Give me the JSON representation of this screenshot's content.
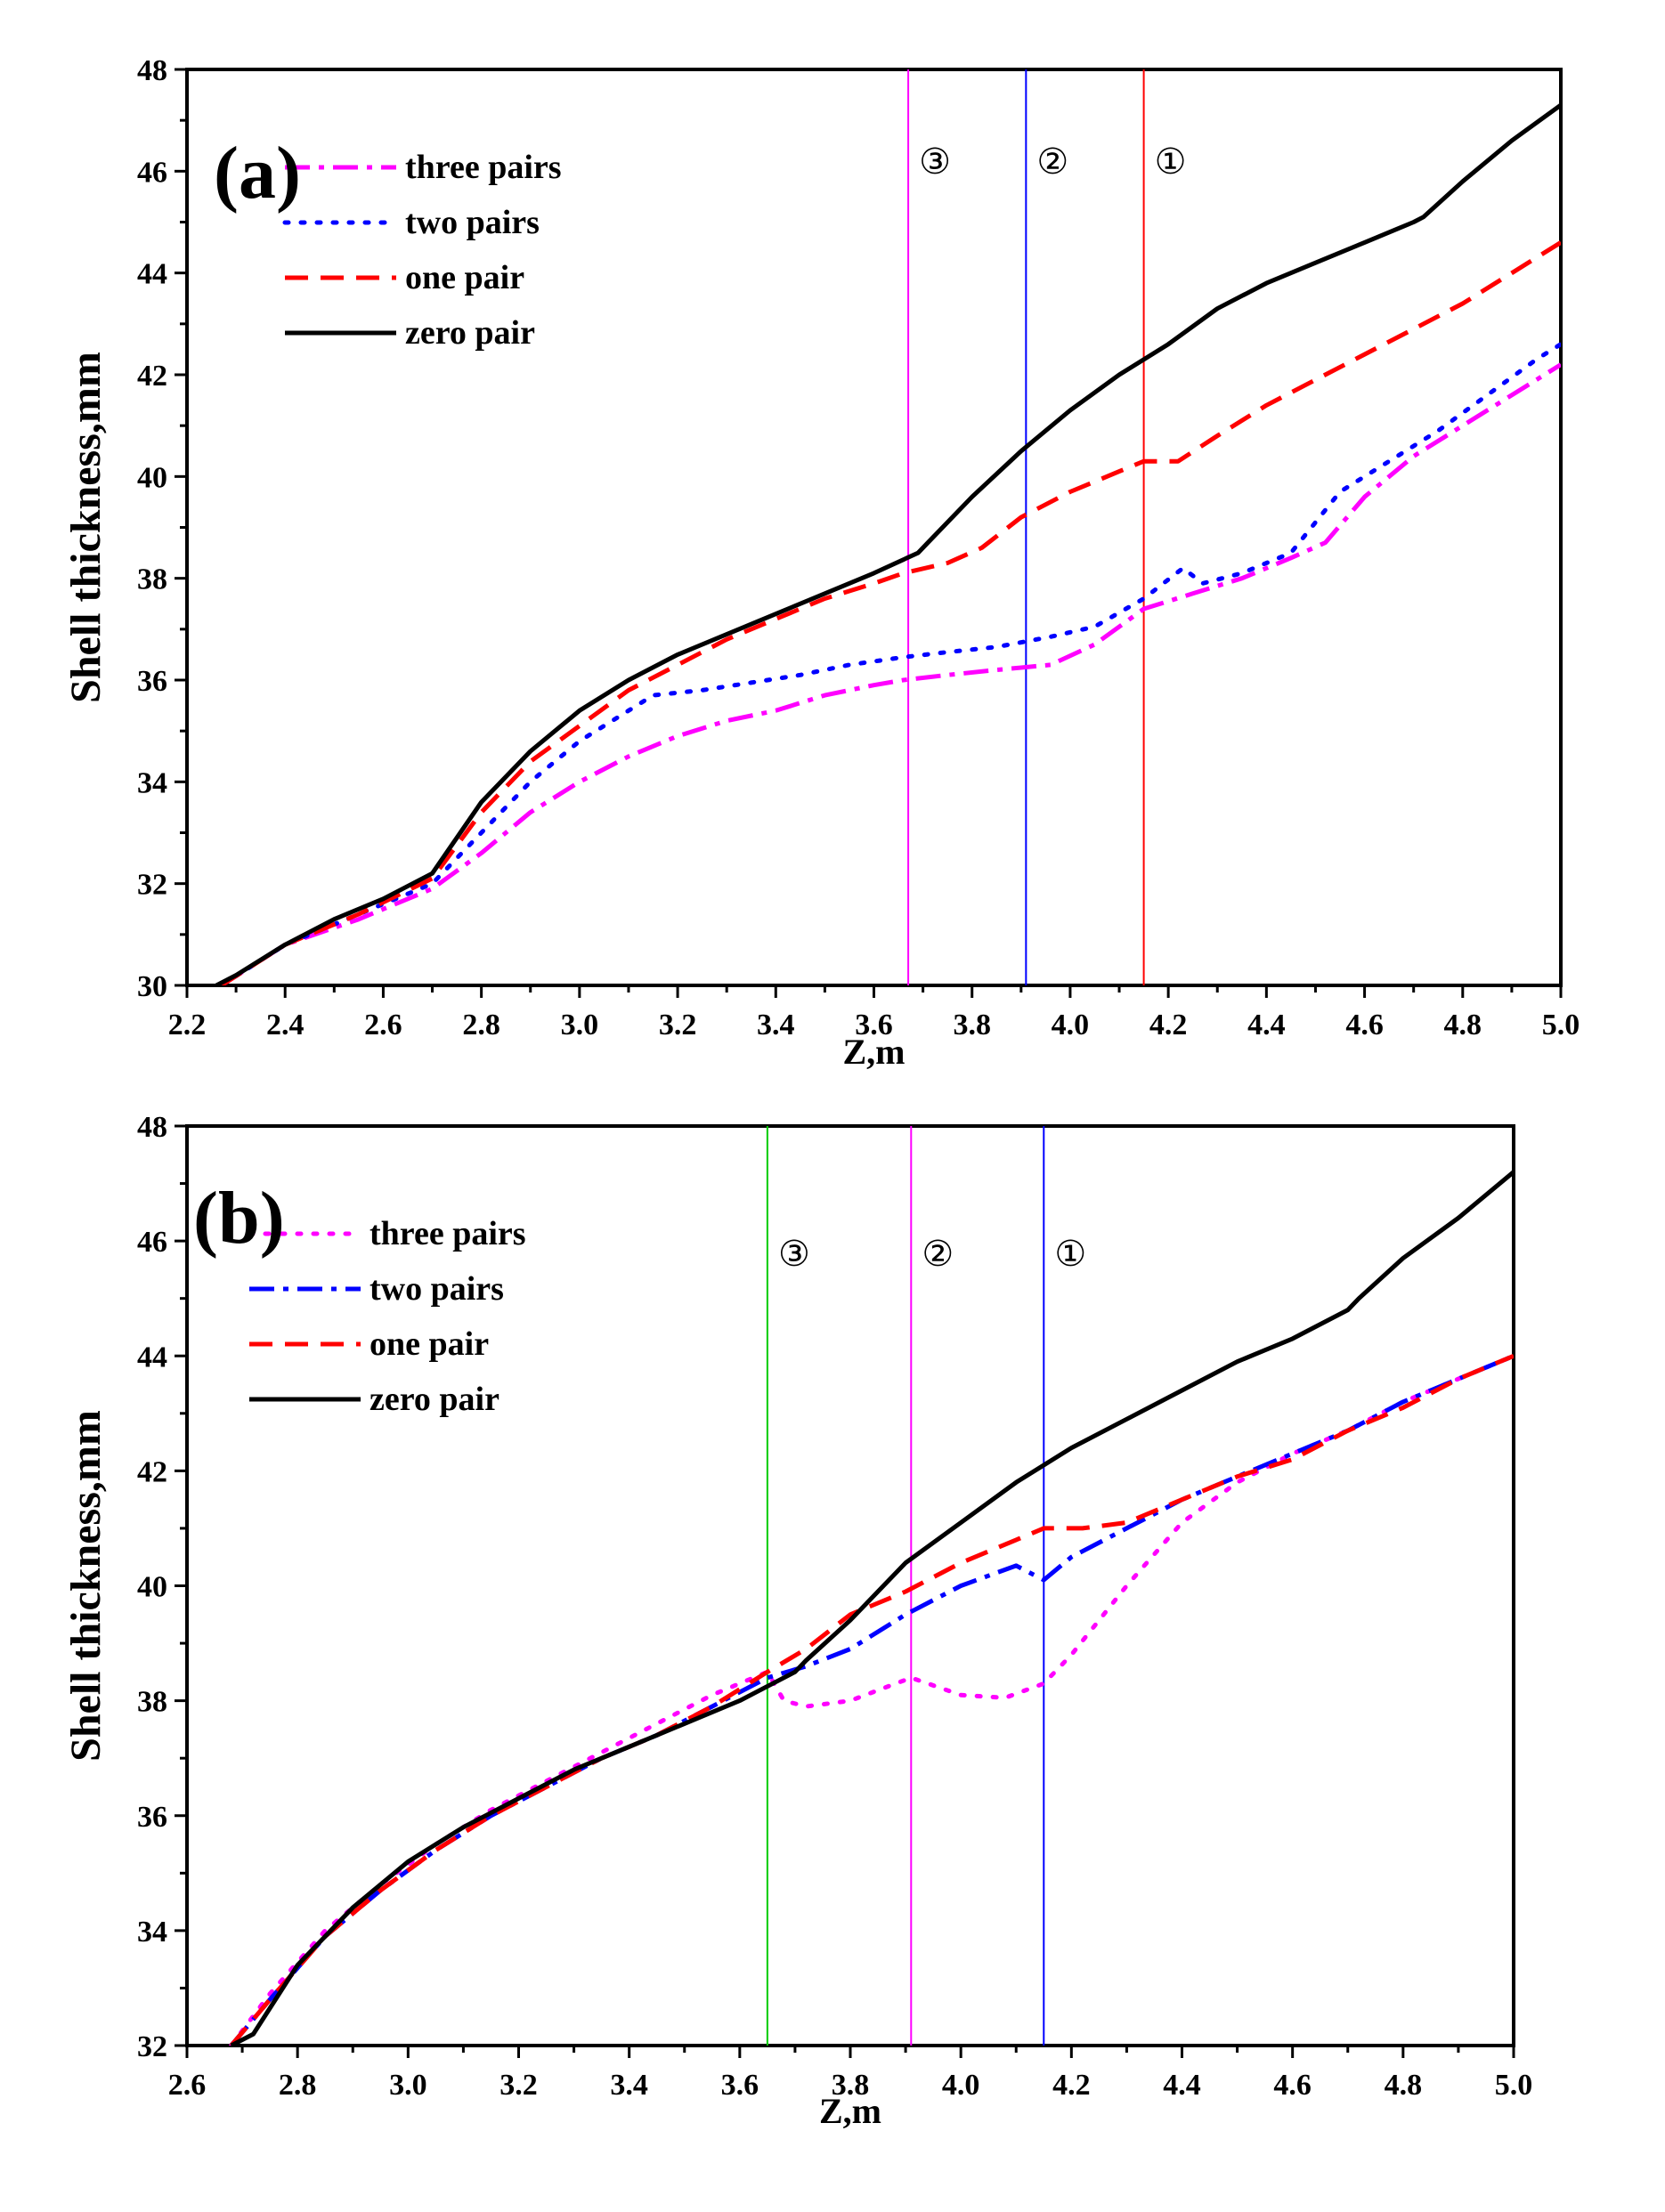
{
  "chart_data": [
    {
      "id": "a",
      "type": "line",
      "panel_label": "(a)",
      "xlabel": "Z,m",
      "ylabel": "Shell thickness,mm",
      "xlim": [
        2.2,
        5.0
      ],
      "ylim": [
        30,
        48
      ],
      "xticks": [
        "2.2",
        "2.4",
        "2.6",
        "2.8",
        "3.0",
        "3.2",
        "3.4",
        "3.6",
        "3.8",
        "4.0",
        "4.2",
        "4.4",
        "4.6",
        "4.8",
        "5.0"
      ],
      "yticks": [
        "30",
        "32",
        "34",
        "36",
        "38",
        "40",
        "42",
        "44",
        "46",
        "48"
      ],
      "legend_position": "top-left",
      "series": [
        {
          "name": "three pairs",
          "color": "#ff00ff",
          "dash": "dashdot",
          "x": [
            2.27,
            2.4,
            2.55,
            2.7,
            2.8,
            2.9,
            3.0,
            3.1,
            3.2,
            3.3,
            3.4,
            3.5,
            3.6,
            3.66,
            3.75,
            3.85,
            3.96,
            4.05,
            4.15,
            4.25,
            4.35,
            4.45,
            4.52,
            4.6,
            4.7,
            4.8,
            4.9,
            5.0
          ],
          "y": [
            30.0,
            30.8,
            31.3,
            31.9,
            32.6,
            33.4,
            34.0,
            34.5,
            34.9,
            35.2,
            35.4,
            35.7,
            35.9,
            36.0,
            36.1,
            36.2,
            36.3,
            36.7,
            37.4,
            37.7,
            38.0,
            38.4,
            38.7,
            39.6,
            40.4,
            41.0,
            41.6,
            42.2
          ]
        },
        {
          "name": "two pairs",
          "color": "#0000ff",
          "dash": "dot",
          "x": [
            2.27,
            2.4,
            2.55,
            2.7,
            2.8,
            2.9,
            3.0,
            3.1,
            3.15,
            3.25,
            3.35,
            3.45,
            3.55,
            3.66,
            3.75,
            3.85,
            3.96,
            4.05,
            4.15,
            4.23,
            4.27,
            4.35,
            4.45,
            4.55,
            4.65,
            4.75,
            4.85,
            4.95,
            5.0
          ],
          "y": [
            30.0,
            30.8,
            31.4,
            32.0,
            33.0,
            34.0,
            34.8,
            35.4,
            35.7,
            35.8,
            35.95,
            36.1,
            36.3,
            36.45,
            36.55,
            36.65,
            36.85,
            37.05,
            37.6,
            38.2,
            37.9,
            38.1,
            38.5,
            39.7,
            40.3,
            40.9,
            41.6,
            42.3,
            42.6
          ]
        },
        {
          "name": "one pair",
          "color": "#ff0000",
          "dash": "dash",
          "x": [
            2.27,
            2.4,
            2.55,
            2.7,
            2.8,
            2.9,
            3.0,
            3.1,
            3.2,
            3.3,
            3.4,
            3.5,
            3.6,
            3.66,
            3.75,
            3.82,
            3.9,
            4.0,
            4.1,
            4.15,
            4.22,
            4.3,
            4.4,
            4.5,
            4.6,
            4.7,
            4.8,
            4.9,
            5.0
          ],
          "y": [
            30.0,
            30.8,
            31.4,
            32.1,
            33.4,
            34.4,
            35.1,
            35.8,
            36.3,
            36.8,
            37.2,
            37.6,
            37.9,
            38.1,
            38.3,
            38.6,
            39.2,
            39.7,
            40.1,
            40.3,
            40.3,
            40.8,
            41.4,
            41.9,
            42.4,
            42.9,
            43.4,
            44.0,
            44.6
          ]
        },
        {
          "name": "zero pair",
          "color": "#000000",
          "dash": "solid",
          "x": [
            2.26,
            2.3,
            2.4,
            2.5,
            2.6,
            2.7,
            2.8,
            2.9,
            3.0,
            3.1,
            3.2,
            3.3,
            3.4,
            3.5,
            3.6,
            3.69,
            3.71,
            3.8,
            3.9,
            4.0,
            4.1,
            4.2,
            4.3,
            4.4,
            4.5,
            4.6,
            4.7,
            4.72,
            4.8,
            4.9,
            5.0
          ],
          "y": [
            30.0,
            30.2,
            30.8,
            31.3,
            31.7,
            32.2,
            33.6,
            34.6,
            35.4,
            36.0,
            36.5,
            36.9,
            37.3,
            37.7,
            38.1,
            38.5,
            38.7,
            39.6,
            40.5,
            41.3,
            42.0,
            42.6,
            43.3,
            43.8,
            44.2,
            44.6,
            45.0,
            45.1,
            45.8,
            46.6,
            47.3
          ]
        }
      ],
      "vlines": [
        {
          "x": 3.67,
          "color": "#ff00ff",
          "label": "③"
        },
        {
          "x": 3.91,
          "color": "#0000ff",
          "label": "②"
        },
        {
          "x": 4.15,
          "color": "#ff0000",
          "label": "①"
        }
      ]
    },
    {
      "id": "b",
      "type": "line",
      "panel_label": "(b)",
      "xlabel": "Z,m",
      "ylabel": "Shell thickness,mm",
      "xlim": [
        2.6,
        5.0
      ],
      "ylim": [
        32,
        48
      ],
      "xticks": [
        "2.6",
        "2.8",
        "3.0",
        "3.2",
        "3.4",
        "3.6",
        "3.8",
        "4.0",
        "4.2",
        "4.4",
        "4.6",
        "4.8",
        "5.0"
      ],
      "yticks": [
        "32",
        "34",
        "36",
        "38",
        "40",
        "42",
        "44",
        "46",
        "48"
      ],
      "legend_position": "top-left",
      "series": [
        {
          "name": "three pairs",
          "color": "#ff00ff",
          "dash": "dot",
          "x": [
            2.68,
            2.75,
            2.85,
            2.95,
            3.05,
            3.15,
            3.25,
            3.35,
            3.45,
            3.55,
            3.65,
            3.68,
            3.72,
            3.8,
            3.91,
            4.0,
            4.08,
            4.15,
            4.2,
            4.3,
            4.4,
            4.5,
            4.6,
            4.7,
            4.8,
            4.9,
            5.0
          ],
          "y": [
            32.0,
            32.9,
            34.0,
            34.8,
            35.5,
            36.1,
            36.6,
            37.1,
            37.6,
            38.1,
            38.5,
            38.0,
            37.9,
            38.0,
            38.4,
            38.1,
            38.05,
            38.3,
            38.8,
            40.0,
            41.1,
            41.8,
            42.3,
            42.7,
            43.2,
            43.6,
            44.0
          ]
        },
        {
          "name": "two pairs",
          "color": "#0000ff",
          "dash": "dashdot",
          "x": [
            2.68,
            2.75,
            2.85,
            2.95,
            3.05,
            3.15,
            3.25,
            3.35,
            3.45,
            3.55,
            3.65,
            3.72,
            3.8,
            3.9,
            4.0,
            4.1,
            4.15,
            4.2,
            4.3,
            4.4,
            4.5,
            4.6,
            4.7,
            4.8,
            4.9,
            5.0
          ],
          "y": [
            32.0,
            32.8,
            33.9,
            34.7,
            35.4,
            36.0,
            36.5,
            37.0,
            37.4,
            37.9,
            38.4,
            38.6,
            38.9,
            39.5,
            40.0,
            40.35,
            40.1,
            40.5,
            41.0,
            41.5,
            41.9,
            42.3,
            42.7,
            43.2,
            43.6,
            44.0
          ]
        },
        {
          "name": "one pair",
          "color": "#ff0000",
          "dash": "dash",
          "x": [
            2.68,
            2.75,
            2.85,
            2.95,
            3.05,
            3.15,
            3.25,
            3.35,
            3.45,
            3.55,
            3.65,
            3.72,
            3.8,
            3.9,
            4.0,
            4.1,
            4.15,
            4.22,
            4.3,
            4.4,
            4.5,
            4.6,
            4.7,
            4.8,
            4.9,
            5.0
          ],
          "y": [
            32.0,
            32.8,
            33.9,
            34.7,
            35.4,
            36.0,
            36.5,
            37.0,
            37.4,
            37.9,
            38.5,
            38.9,
            39.5,
            39.9,
            40.4,
            40.8,
            41.0,
            41.0,
            41.1,
            41.5,
            41.9,
            42.2,
            42.7,
            43.1,
            43.6,
            44.0
          ]
        },
        {
          "name": "zero pair",
          "color": "#000000",
          "dash": "solid",
          "x": [
            2.68,
            2.72,
            2.8,
            2.9,
            3.0,
            3.1,
            3.2,
            3.3,
            3.4,
            3.5,
            3.6,
            3.7,
            3.72,
            3.8,
            3.9,
            4.0,
            4.1,
            4.2,
            4.3,
            4.4,
            4.5,
            4.6,
            4.7,
            4.72,
            4.8,
            4.9,
            5.0
          ],
          "y": [
            32.0,
            32.2,
            33.4,
            34.4,
            35.2,
            35.8,
            36.3,
            36.8,
            37.2,
            37.6,
            38.0,
            38.5,
            38.7,
            39.4,
            40.4,
            41.1,
            41.8,
            42.4,
            42.9,
            43.4,
            43.9,
            44.3,
            44.8,
            45.0,
            45.7,
            46.4,
            47.2
          ]
        }
      ],
      "vlines": [
        {
          "x": 3.65,
          "color": "#00cc00",
          "label": "③"
        },
        {
          "x": 3.91,
          "color": "#ff00ff",
          "label": "②"
        },
        {
          "x": 4.15,
          "color": "#0000ff",
          "label": "①"
        }
      ]
    }
  ]
}
